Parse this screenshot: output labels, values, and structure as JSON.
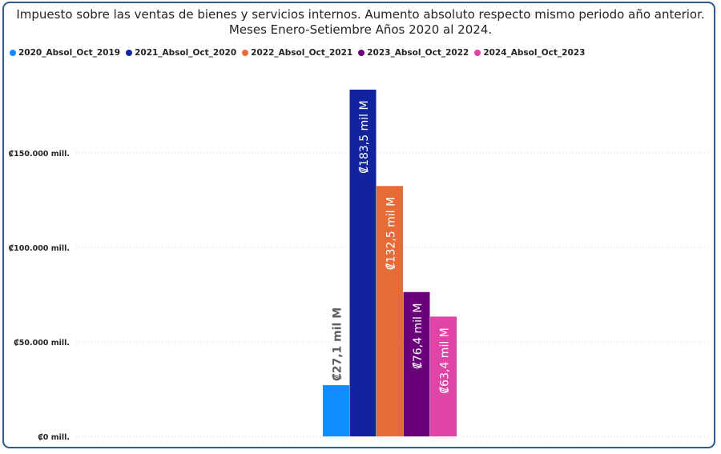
{
  "chart_data": {
    "type": "bar",
    "title_line1": "Impuesto sobre las ventas de bienes y servicios internos. Aumento absoluto respecto mismo periodo año anterior.",
    "title_line2": "Meses Enero-Setiembre Años 2020 al 2024.",
    "categories": [
      ""
    ],
    "series": [
      {
        "name": "2020_Absol_Oct_2019",
        "value": 27100,
        "label": "₡27,1 mil M",
        "color": "#118dff"
      },
      {
        "name": "2021_Absol_Oct_2020",
        "value": 183500,
        "label": "₡183,5 mil M",
        "color": "#12239e"
      },
      {
        "name": "2022_Absol_Oct_2021",
        "value": 132500,
        "label": "₡132,5 mil M",
        "color": "#e66c37"
      },
      {
        "name": "2023_Absol_Oct_2022",
        "value": 76400,
        "label": "₡76,4 mil M",
        "color": "#6b007b"
      },
      {
        "name": "2024_Absol_Oct_2023",
        "value": 63400,
        "label": "₡63,4 mil M",
        "color": "#e044a7"
      }
    ],
    "y_ticks": [
      {
        "value": 0,
        "label": "₡0 mill."
      },
      {
        "value": 50000,
        "label": "₡50.000 mill."
      },
      {
        "value": 100000,
        "label": "₡100.000 mill."
      },
      {
        "value": 150000,
        "label": "₡150.000 mill."
      }
    ],
    "ylim": [
      0,
      185000
    ],
    "grid": true,
    "legend_position": "top-left"
  },
  "colors": {
    "frame": "#2f5b8a",
    "grid": "#d9d9d9",
    "label_outside": "#605e5c",
    "label_inside": "#ffffff"
  }
}
